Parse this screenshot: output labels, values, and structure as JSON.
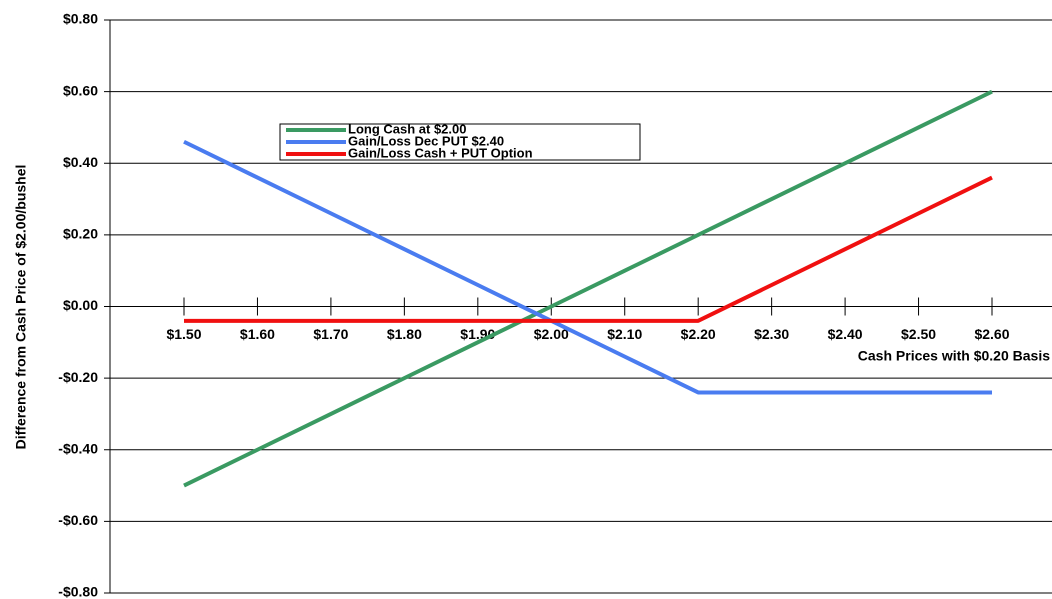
{
  "chart_data": {
    "type": "line",
    "x_label": "Cash  Prices with $0.20 Basis",
    "y_label": "Difference from Cash Price of $2.00/bushel",
    "categories": [
      "$1.50",
      "$1.60",
      "$1.70",
      "$1.80",
      "$1.90",
      "$2.00",
      "$2.10",
      "$2.20",
      "$2.30",
      "$2.40",
      "$2.50",
      "$2.60"
    ],
    "series": [
      {
        "name": "Long Cash at $2.00",
        "color": "#3a9a62",
        "values": [
          -0.5,
          -0.4,
          -0.3,
          -0.2,
          -0.1,
          0,
          0.1,
          0.2,
          0.3,
          0.4,
          0.5,
          0.6
        ]
      },
      {
        "name": "Gain/Loss Dec PUT $2.40",
        "color": "#4a7cf0",
        "values": [
          0.46,
          0.36,
          0.26,
          0.16,
          0.06,
          -0.04,
          -0.14,
          -0.24,
          -0.24,
          -0.24,
          -0.24,
          -0.24
        ]
      },
      {
        "name": "Gain/Loss Cash + PUT Option",
        "color": "#f01010",
        "values": [
          -0.04,
          -0.04,
          -0.04,
          -0.04,
          -0.04,
          -0.04,
          -0.04,
          -0.04,
          0.06,
          0.16,
          0.26,
          0.36
        ]
      }
    ],
    "ylim": [
      -0.8,
      0.8
    ],
    "yticks": [
      {
        "value": -0.8,
        "label": "-$0.80"
      },
      {
        "value": -0.6,
        "label": "-$0.60"
      },
      {
        "value": -0.4,
        "label": "-$0.40"
      },
      {
        "value": -0.2,
        "label": "-$0.20"
      },
      {
        "value": 0,
        "label": "$0.00"
      },
      {
        "value": 0.2,
        "label": "$0.20"
      },
      {
        "value": 0.4,
        "label": "$0.40"
      },
      {
        "value": 0.6,
        "label": "$0.60"
      },
      {
        "value": 0.8,
        "label": "$0.80"
      }
    ],
    "grid": true
  }
}
